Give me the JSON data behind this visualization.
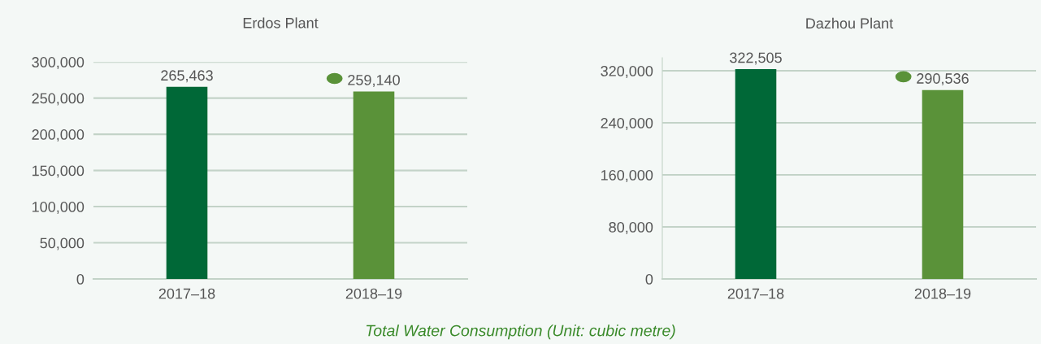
{
  "chart_data": [
    {
      "type": "bar",
      "title": "Erdos Plant",
      "categories": [
        "2017–18",
        "2018–19"
      ],
      "values": [
        265463,
        259140
      ],
      "colors": [
        "#006837",
        "#5a9239"
      ],
      "value_labels": [
        "265,463",
        "259,140"
      ],
      "ylim": [
        0,
        300000
      ],
      "yticks": [
        {
          "value": 0,
          "label": "0"
        },
        {
          "value": 50000,
          "label": "50,000"
        },
        {
          "value": 100000,
          "label": "100,000"
        },
        {
          "value": 150000,
          "label": "150,000"
        },
        {
          "value": 200000,
          "label": "200,000"
        },
        {
          "value": 250000,
          "label": "250,000"
        },
        {
          "value": 300000,
          "label": "300,000"
        }
      ],
      "grid": "y",
      "annotations": [
        "Total Water Consumption (Unit: cubic metre)"
      ]
    },
    {
      "type": "bar",
      "title": "Dazhou Plant",
      "categories": [
        "2017–18",
        "2018–19"
      ],
      "values": [
        322505,
        290536
      ],
      "colors": [
        "#006837",
        "#5a9239"
      ],
      "value_labels": [
        "322,505",
        "290,536"
      ],
      "ylim": [
        0,
        340000
      ],
      "yticks": [
        {
          "value": 0,
          "label": "0"
        },
        {
          "value": 80000,
          "label": "80,000"
        },
        {
          "value": 160000,
          "label": "160,000"
        },
        {
          "value": 240000,
          "label": "240,000"
        },
        {
          "value": 320000,
          "label": "320,000"
        }
      ],
      "grid": "y"
    }
  ]
}
